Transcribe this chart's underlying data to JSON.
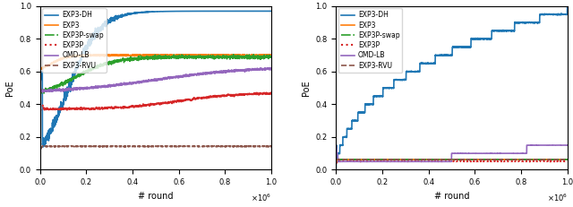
{
  "left": {
    "title": "",
    "xlabel": "# round",
    "ylabel": "PoE",
    "xlim": [
      0,
      1000000
    ],
    "ylim": [
      0.0,
      1.0
    ],
    "xticks": [
      0,
      200000,
      400000,
      600000,
      800000,
      1000000
    ],
    "yticks": [
      0.0,
      0.2,
      0.4,
      0.6,
      0.8,
      1.0
    ],
    "series": {
      "EXP3-DH": {
        "color": "#1f77b4",
        "linestyle": "solid",
        "linewidth": 1.2
      },
      "EXP3": {
        "color": "#ff7f0e",
        "linestyle": "solid",
        "linewidth": 1.2
      },
      "EXP3P-swap": {
        "color": "#2ca02c",
        "linestyle": "dashdot",
        "linewidth": 1.2
      },
      "EXP3P": {
        "color": "#d62728",
        "linestyle": "dotted",
        "linewidth": 1.5
      },
      "OMD-LB": {
        "color": "#9467bd",
        "linestyle": "solid",
        "linewidth": 1.2
      },
      "EXP3-RVU": {
        "color": "#8c564b",
        "linestyle": "dashed",
        "linewidth": 1.2
      }
    }
  },
  "right": {
    "title": "",
    "xlabel": "# round",
    "ylabel": "PoE",
    "xlim": [
      0,
      1000000
    ],
    "ylim": [
      0.0,
      1.0
    ],
    "xticks": [
      0,
      200000,
      400000,
      600000,
      800000,
      1000000
    ],
    "yticks": [
      0.0,
      0.2,
      0.4,
      0.6,
      0.8,
      1.0
    ],
    "series": {
      "EXP3-DH": {
        "color": "#1f77b4",
        "linestyle": "solid",
        "linewidth": 1.2
      },
      "EXP3": {
        "color": "#ff7f0e",
        "linestyle": "solid",
        "linewidth": 1.2
      },
      "EXP3P-swap": {
        "color": "#2ca02c",
        "linestyle": "dashdot",
        "linewidth": 1.2
      },
      "EXP3P": {
        "color": "#d62728",
        "linestyle": "dotted",
        "linewidth": 1.5
      },
      "OMD-LB": {
        "color": "#9467bd",
        "linestyle": "solid",
        "linewidth": 1.2
      },
      "EXP3-RVU": {
        "color": "#8c564b",
        "linestyle": "dashed",
        "linewidth": 1.2
      }
    }
  },
  "figsize": [
    6.4,
    2.31
  ],
  "dpi": 100
}
